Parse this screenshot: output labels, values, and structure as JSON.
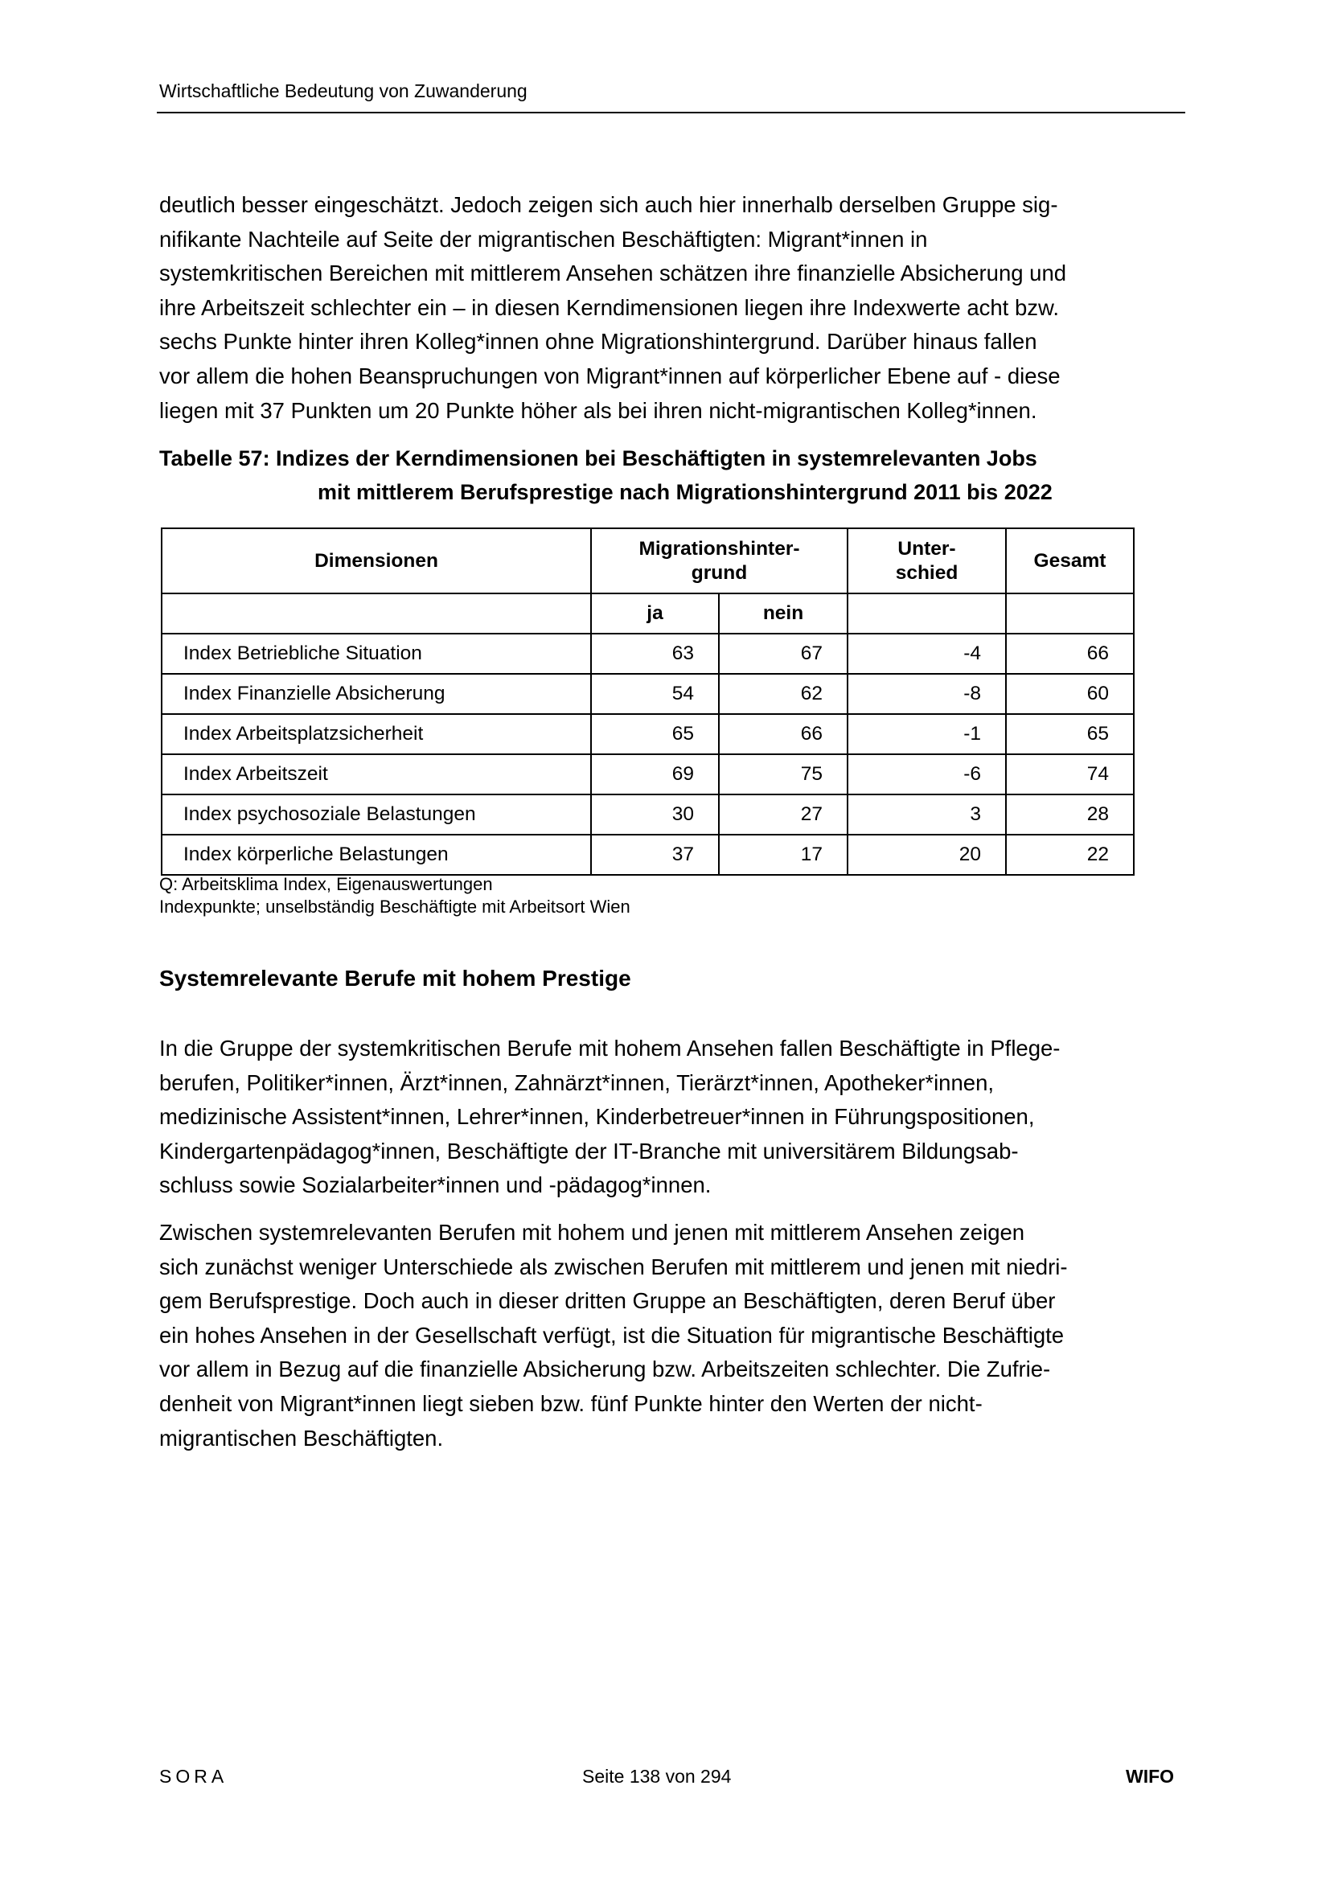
{
  "header": {
    "running_title": "Wirtschaftliche Bedeutung von Zuwanderung"
  },
  "paragraph1": [
    "deutlich besser eingeschätzt. Jedoch zeigen sich auch hier innerhalb derselben Gruppe sig-",
    "nifikante Nachteile auf Seite der migrantischen Beschäftigten: Migrant*innen in",
    "systemkritischen Bereichen mit mittlerem Ansehen schätzen ihre finanzielle Absicherung und",
    "ihre Arbeitszeit schlechter ein – in diesen Kerndimensionen liegen ihre Indexwerte acht bzw.",
    "sechs Punkte hinter ihren Kolleg*innen ohne Migrationshintergrund. Darüber hinaus fallen",
    "vor allem die hohen Beanspruchungen von Migrant*innen auf körperlicher Ebene auf - diese",
    "liegen mit 37 Punkten um 20 Punkte höher als bei ihren nicht-migrantischen Kolleg*innen."
  ],
  "table": {
    "caption_line1": "Tabelle 57: Indizes der Kerndimensionen bei Beschäftigten in systemrelevanten Jobs",
    "caption_line2": "mit mittlerem Berufsprestige nach Migrationshintergrund 2011 bis 2022",
    "headers": {
      "dimensionen": "Dimensionen",
      "migration_l1": "Migrationshinter-",
      "migration_l2": "grund",
      "unterschied_l1": "Unter-",
      "unterschied_l2": "schied",
      "gesamt": "Gesamt",
      "ja": "ja",
      "nein": "nein"
    },
    "rows": [
      {
        "label": "Index Betriebliche Situation",
        "ja": "63",
        "nein": "67",
        "diff": "-4",
        "total": "66"
      },
      {
        "label": "Index Finanzielle Absicherung",
        "ja": "54",
        "nein": "62",
        "diff": "-8",
        "total": "60"
      },
      {
        "label": "Index Arbeitsplatzsicherheit",
        "ja": "65",
        "nein": "66",
        "diff": "-1",
        "total": "65"
      },
      {
        "label": "Index Arbeitszeit",
        "ja": "69",
        "nein": "75",
        "diff": "-6",
        "total": "74"
      },
      {
        "label": "Index psychosoziale Belastungen",
        "ja": "30",
        "nein": "27",
        "diff": "3",
        "total": "28"
      },
      {
        "label": "Index körperliche Belastungen",
        "ja": "37",
        "nein": "17",
        "diff": "20",
        "total": "22"
      }
    ],
    "source": "Q: Arbeitsklima Index, Eigenauswertungen",
    "note": "Indexpunkte; unselbständig Beschäftigte mit Arbeitsort Wien"
  },
  "section_heading": "Systemrelevante Berufe mit hohem Prestige",
  "paragraph2": [
    "In die Gruppe der systemkritischen Berufe mit hohem Ansehen fallen Beschäftigte in Pflege-",
    "berufen, Politiker*innen, Ärzt*innen, Zahnärzt*innen, Tierärzt*innen, Apotheker*innen,",
    "medizinische Assistent*innen, Lehrer*innen, Kinderbetreuer*innen in Führungspositionen,",
    "Kindergartenpädagog*innen, Beschäftigte der IT-Branche mit universitärem Bildungsab-",
    "schluss sowie Sozialarbeiter*innen und -pädagog*innen."
  ],
  "paragraph3": [
    "Zwischen systemrelevanten Berufen mit hohem und jenen mit mittlerem Ansehen zeigen",
    "sich zunächst weniger Unterschiede als zwischen Berufen mit mittlerem und jenen mit niedri-",
    "gem Berufsprestige. Doch auch in dieser dritten Gruppe an Beschäftigten, deren Beruf über",
    "ein hohes Ansehen in der Gesellschaft verfügt, ist die Situation für migrantische Beschäftigte",
    "vor allem in Bezug auf die finanzielle Absicherung bzw. Arbeitszeiten schlechter. Die Zufrie-",
    "denheit von Migrant*innen liegt sieben bzw. fünf Punkte hinter den Werten der nicht-",
    "migrantischen Beschäftigten."
  ],
  "footer": {
    "left_logo": "SORA",
    "page": "Seite 138 von 294",
    "right_logo": "WIFO"
  }
}
